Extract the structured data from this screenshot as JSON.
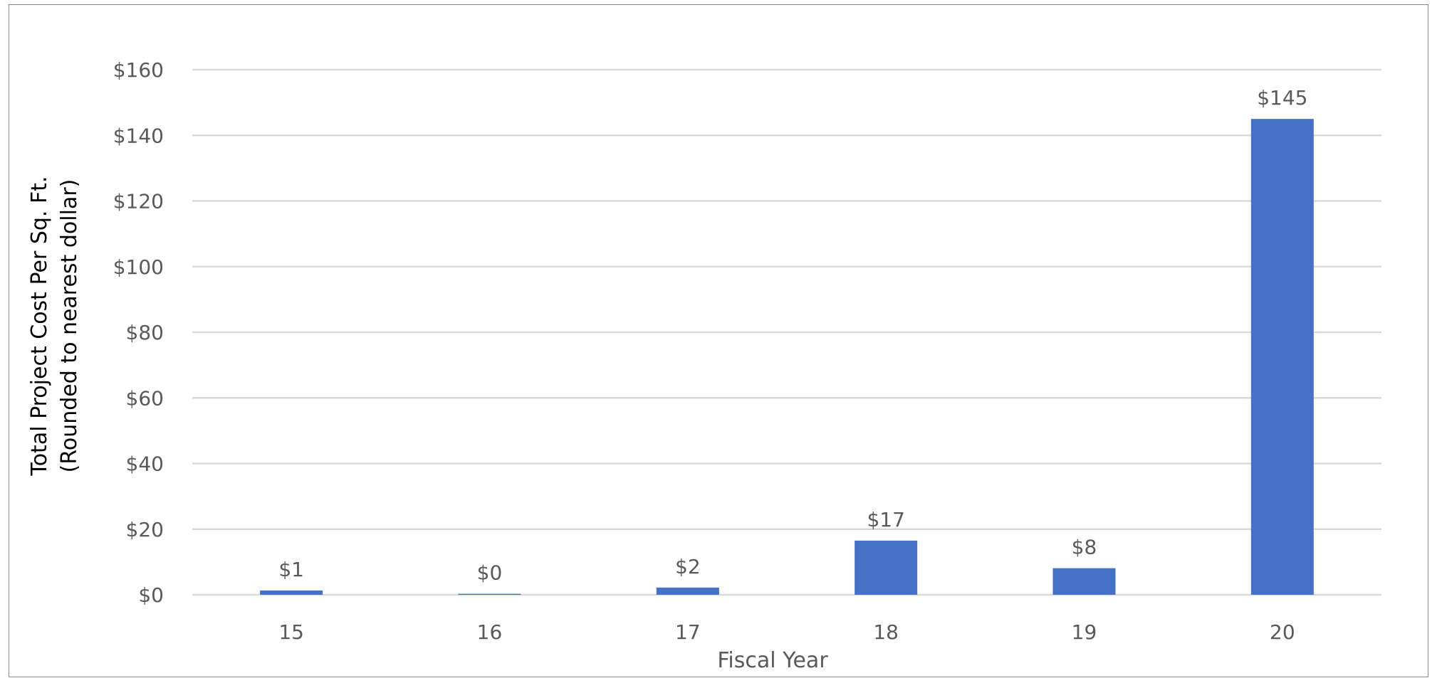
{
  "chart_data": {
    "type": "bar",
    "title": "",
    "xlabel": "Fiscal Year",
    "ylabel_line1": "Total Project Cost Per Sq. Ft.",
    "ylabel_line2": "(Rounded to nearest dollar)",
    "categories": [
      "15",
      "16",
      "17",
      "18",
      "19",
      "20"
    ],
    "values": [
      1.3,
      0.3,
      2.2,
      16.5,
      8.1,
      145
    ],
    "data_labels": [
      "$1",
      "$0",
      "$2",
      "$17",
      "$8",
      "$145"
    ],
    "ylim": [
      0,
      160
    ],
    "yticks": [
      0,
      20,
      40,
      60,
      80,
      100,
      120,
      140,
      160
    ],
    "ytick_labels": [
      "$0",
      "$20",
      "$40",
      "$60",
      "$80",
      "$100",
      "$120",
      "$140",
      "$160"
    ],
    "grid": true,
    "legend": "none",
    "bar_color": "#4472C4",
    "grid_color": "#d9d9d9"
  }
}
